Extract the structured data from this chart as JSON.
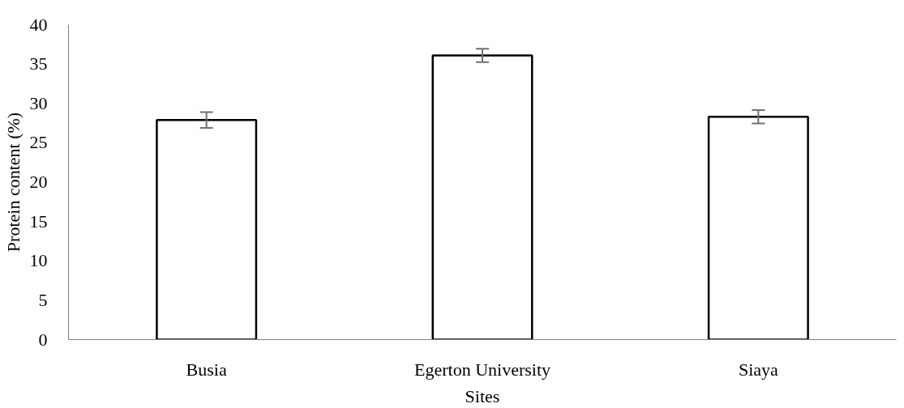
{
  "chart_data": {
    "type": "bar",
    "categories": [
      "Busia",
      "Egerton University",
      "Siaya"
    ],
    "values": [
      27.9,
      36.1,
      28.3
    ],
    "errors": [
      1.0,
      0.85,
      0.85
    ],
    "color": "#ffffff",
    "xlabel": "Sites",
    "ylabel": "Protein content (%)",
    "ylim": [
      0,
      40
    ],
    "yticks": [
      0,
      5,
      10,
      15,
      20,
      25,
      30,
      35,
      40
    ],
    "grid": false
  }
}
